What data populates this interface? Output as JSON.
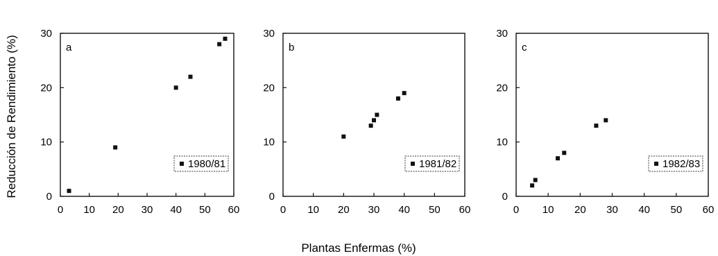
{
  "figure": {
    "ylabel": "Reducción de Rendimiento (%)",
    "xlabel": "Plantas Enfermas (%)"
  },
  "chart_data": [
    {
      "type": "scatter",
      "panel_label": "a",
      "legend": "1980/81",
      "legend_position": "bottom-right",
      "xlim": [
        0,
        60
      ],
      "ylim": [
        0,
        30
      ],
      "xticks": [
        "0",
        "10",
        "20",
        "30",
        "40",
        "50",
        "60"
      ],
      "yticks": [
        "0",
        "10",
        "20",
        "30"
      ],
      "points": [
        {
          "x": 3,
          "y": 1
        },
        {
          "x": 19,
          "y": 9
        },
        {
          "x": 40,
          "y": 20
        },
        {
          "x": 45,
          "y": 22
        },
        {
          "x": 55,
          "y": 28
        },
        {
          "x": 57,
          "y": 29
        }
      ]
    },
    {
      "type": "scatter",
      "panel_label": "b",
      "legend": "1981/82",
      "legend_position": "bottom-right",
      "xlim": [
        0,
        60
      ],
      "ylim": [
        0,
        30
      ],
      "xticks": [
        "0",
        "10",
        "20",
        "30",
        "40",
        "50",
        "60"
      ],
      "yticks": [
        "0",
        "10",
        "20",
        "30"
      ],
      "points": [
        {
          "x": 20,
          "y": 11
        },
        {
          "x": 29,
          "y": 13
        },
        {
          "x": 30,
          "y": 14
        },
        {
          "x": 31,
          "y": 15
        },
        {
          "x": 38,
          "y": 18
        },
        {
          "x": 40,
          "y": 19
        }
      ]
    },
    {
      "type": "scatter",
      "panel_label": "c",
      "legend": "1982/83",
      "legend_position": "bottom-right",
      "xlim": [
        0,
        60
      ],
      "ylim": [
        0,
        30
      ],
      "xticks": [
        "0",
        "10",
        "20",
        "30",
        "40",
        "50",
        "60"
      ],
      "yticks": [
        "0",
        "10",
        "20",
        "30"
      ],
      "points": [
        {
          "x": 5,
          "y": 2
        },
        {
          "x": 6,
          "y": 3
        },
        {
          "x": 13,
          "y": 7
        },
        {
          "x": 15,
          "y": 8
        },
        {
          "x": 25,
          "y": 13
        },
        {
          "x": 28,
          "y": 14
        }
      ]
    }
  ]
}
